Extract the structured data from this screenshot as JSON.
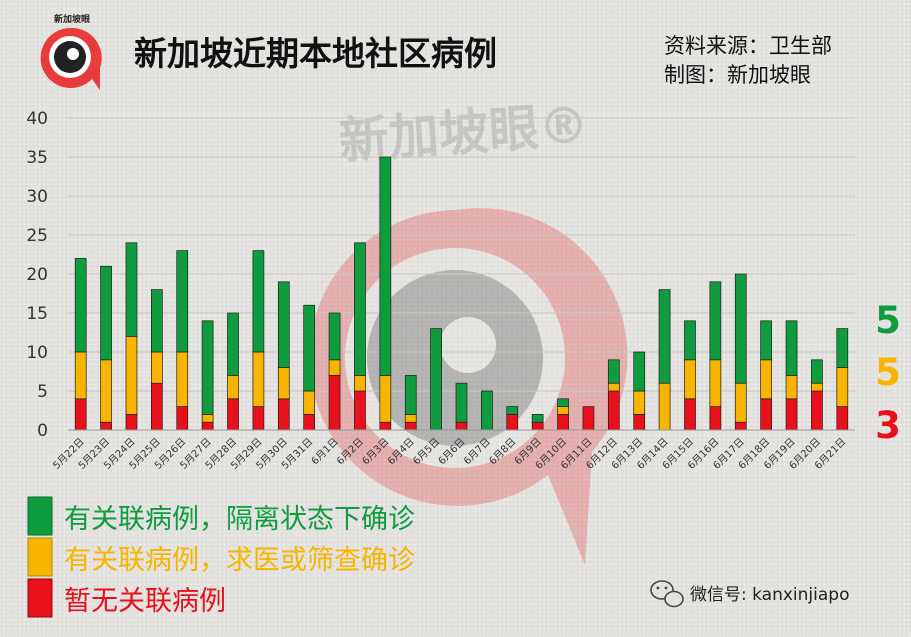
{
  "header": {
    "title": "新加坡近期本地社区病例",
    "source": "资料来源：卫生部",
    "credit": "制图：新加坡眼",
    "brand": "新加坡眼",
    "watermark": "新加坡眼®"
  },
  "chart_data": {
    "type": "bar",
    "stacked": true,
    "categories": [
      "5月22日",
      "5月23日",
      "5月24日",
      "5月25日",
      "5月26日",
      "5月27日",
      "5月28日",
      "5月29日",
      "5月30日",
      "5月31日",
      "6月1日",
      "6月2日",
      "6月3日",
      "6月4日",
      "6月5日",
      "6月6日",
      "6月7日",
      "6月8日",
      "6月9日",
      "6月10日",
      "6月11日",
      "6月12日",
      "6月13日",
      "6月14日",
      "6月15日",
      "6月16日",
      "6月17日",
      "6月18日",
      "6月19日",
      "6月20日",
      "6月21日"
    ],
    "series": [
      {
        "name": "暂无关联病例",
        "color": "#e8101a",
        "values": [
          4,
          1,
          2,
          6,
          3,
          1,
          4,
          3,
          4,
          2,
          7,
          5,
          1,
          1,
          0,
          1,
          0,
          2,
          1,
          2,
          3,
          5,
          2,
          0,
          4,
          3,
          1,
          4,
          4,
          5,
          3
        ]
      },
      {
        "name": "有关联病例，求医或筛查确诊",
        "color": "#f7b500",
        "values": [
          6,
          8,
          10,
          4,
          7,
          1,
          3,
          7,
          4,
          3,
          2,
          2,
          6,
          1,
          0,
          0,
          0,
          0,
          0,
          1,
          0,
          1,
          3,
          6,
          5,
          6,
          5,
          5,
          3,
          1,
          5
        ]
      },
      {
        "name": "有关联病例，隔离状态下确诊",
        "color": "#0f9c3f",
        "values": [
          12,
          12,
          12,
          8,
          13,
          12,
          8,
          13,
          11,
          11,
          6,
          17,
          28,
          5,
          13,
          5,
          5,
          1,
          1,
          1,
          0,
          3,
          5,
          12,
          5,
          10,
          14,
          5,
          7,
          3,
          5
        ]
      }
    ],
    "yticks": [
      "0",
      "5",
      "10",
      "15",
      "20",
      "25",
      "30",
      "35",
      "40"
    ],
    "ylim": [
      0,
      40
    ],
    "grid": true,
    "legend_position": "bottom-left",
    "latest_day": [
      {
        "value": "5",
        "color": "#0f9c3f"
      },
      {
        "value": "5",
        "color": "#f7b500"
      },
      {
        "value": "3",
        "color": "#e8101a"
      }
    ]
  },
  "footer": {
    "wechat_label": "微信号: kanxinjiapo"
  }
}
